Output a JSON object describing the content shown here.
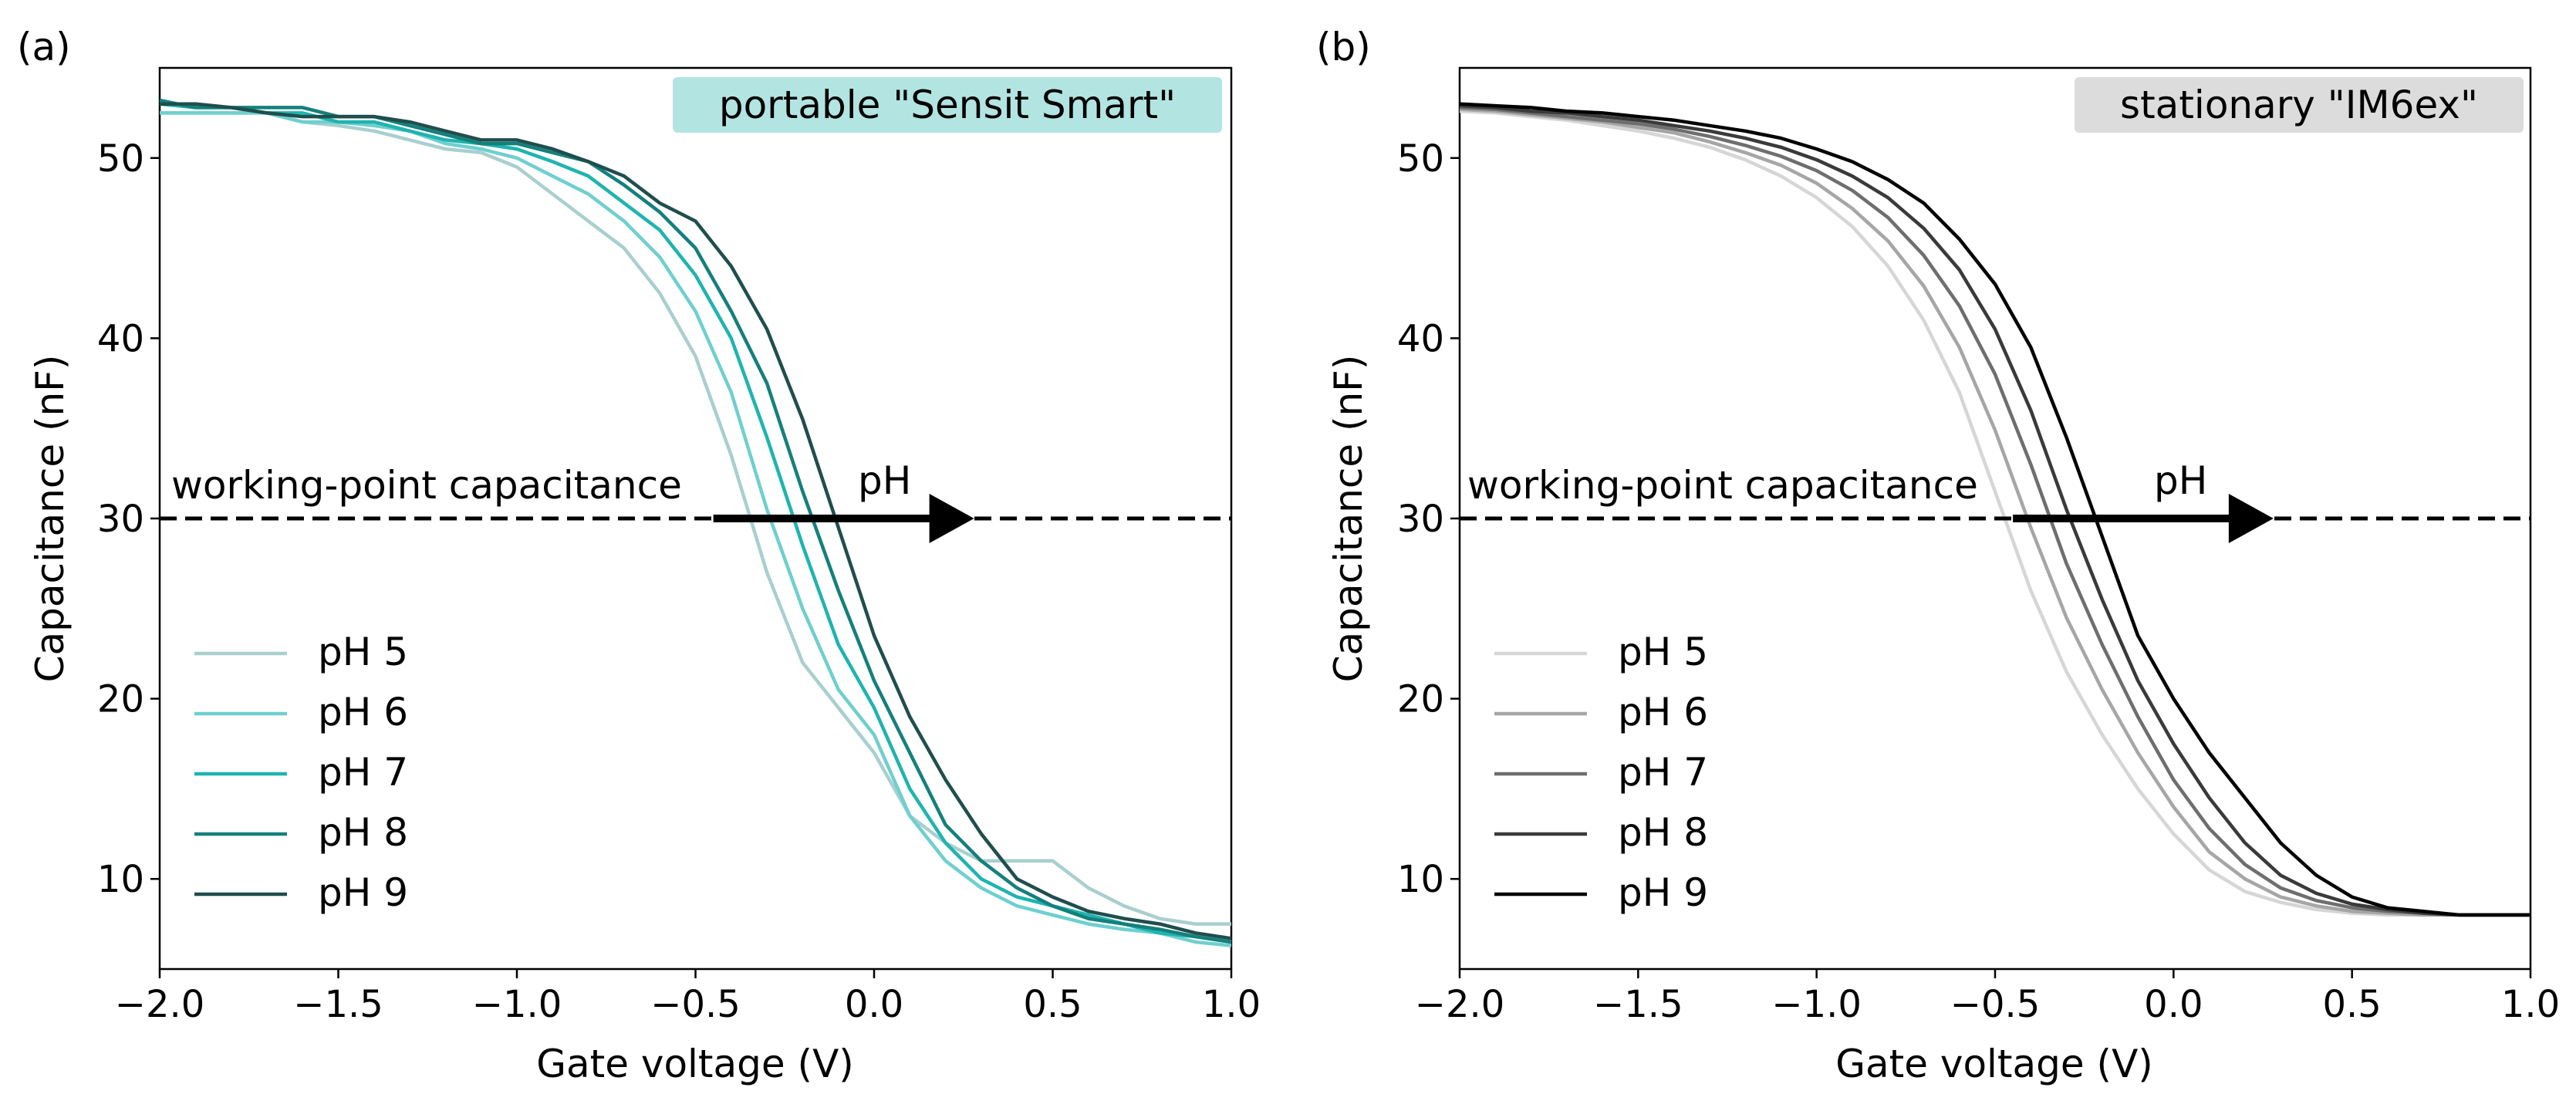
{
  "chart_data": [
    {
      "type": "line",
      "panel_label": "(a)",
      "title": "portable \"Sensit Smart\"",
      "title_bg": "#b2e4e2",
      "xlabel": "Gate voltage (V)",
      "ylabel": "Capacitance (nF)",
      "xlim": [
        -2.0,
        1.0
      ],
      "ylim": [
        5,
        55
      ],
      "xticks": [
        -2.0,
        -1.5,
        -1.0,
        -0.5,
        0.0,
        0.5,
        1.0
      ],
      "xtick_labels": [
        "−2.0",
        "−1.5",
        "−1.0",
        "−0.5",
        "0.0",
        "0.5",
        "1.0"
      ],
      "yticks": [
        10,
        20,
        30,
        40,
        50
      ],
      "ytick_labels": [
        "10",
        "20",
        "30",
        "40",
        "50"
      ],
      "legend_position": "lower-left",
      "reference_line": {
        "y": 30,
        "label": "working-point capacitance"
      },
      "arrow": {
        "x_start": -0.45,
        "x_end": 0.28,
        "y": 30,
        "label": "pH"
      },
      "x": [
        -2.0,
        -1.9,
        -1.8,
        -1.7,
        -1.6,
        -1.5,
        -1.4,
        -1.3,
        -1.2,
        -1.1,
        -1.0,
        -0.9,
        -0.8,
        -0.7,
        -0.6,
        -0.5,
        -0.4,
        -0.3,
        -0.2,
        -0.1,
        0.0,
        0.1,
        0.2,
        0.3,
        0.4,
        0.5,
        0.6,
        0.7,
        0.8,
        0.9,
        1.0
      ],
      "series": [
        {
          "name": "pH 5",
          "color": "#a9cfcf",
          "values": [
            52.5,
            52.5,
            52.5,
            52.5,
            52.0,
            51.8,
            51.5,
            51.0,
            50.5,
            50.3,
            49.5,
            48.0,
            46.5,
            45.0,
            42.5,
            39.0,
            33.5,
            27.0,
            22.0,
            19.5,
            17.0,
            13.5,
            12.0,
            11.0,
            11.0,
            11.0,
            9.5,
            8.5,
            7.8,
            7.5,
            7.5
          ]
        },
        {
          "name": "pH 6",
          "color": "#6fcfcf",
          "values": [
            52.5,
            52.5,
            52.5,
            52.5,
            52.0,
            52.0,
            51.8,
            51.5,
            50.8,
            50.5,
            50.0,
            49.0,
            48.0,
            46.5,
            44.5,
            41.5,
            37.0,
            30.5,
            25.0,
            20.5,
            18.0,
            13.5,
            11.0,
            9.5,
            8.5,
            8.0,
            7.5,
            7.2,
            7.0,
            6.5,
            6.3
          ]
        },
        {
          "name": "pH 7",
          "color": "#1fb4b0",
          "values": [
            53.0,
            52.8,
            52.8,
            52.5,
            52.5,
            52.0,
            52.0,
            51.5,
            51.0,
            50.8,
            50.5,
            49.8,
            49.0,
            47.5,
            46.0,
            43.5,
            40.0,
            34.5,
            28.5,
            23.0,
            19.5,
            15.0,
            12.0,
            10.0,
            9.0,
            8.5,
            8.0,
            7.5,
            7.0,
            6.8,
            6.5
          ]
        },
        {
          "name": "pH 8",
          "color": "#14807c",
          "values": [
            53.2,
            52.8,
            52.8,
            52.8,
            52.8,
            52.3,
            52.3,
            51.8,
            51.3,
            50.8,
            50.8,
            50.3,
            49.8,
            48.5,
            47.0,
            45.0,
            41.5,
            37.5,
            31.5,
            26.0,
            21.0,
            17.0,
            13.0,
            11.0,
            9.5,
            8.5,
            7.8,
            7.5,
            7.2,
            6.8,
            6.5
          ]
        },
        {
          "name": "pH 9",
          "color": "#1f4e4d",
          "values": [
            53.0,
            53.0,
            52.8,
            52.5,
            52.3,
            52.3,
            52.3,
            52.0,
            51.5,
            51.0,
            51.0,
            50.5,
            49.8,
            49.0,
            47.5,
            46.5,
            44.0,
            40.5,
            35.5,
            29.5,
            23.5,
            19.0,
            15.5,
            12.5,
            10.0,
            9.0,
            8.2,
            7.8,
            7.5,
            7.0,
            6.7
          ]
        }
      ]
    },
    {
      "type": "line",
      "panel_label": "(b)",
      "title": "stationary \"IM6ex\"",
      "title_bg": "#dcdcdc",
      "xlabel": "Gate voltage (V)",
      "ylabel": "Capacitance (nF)",
      "xlim": [
        -2.0,
        1.0
      ],
      "ylim": [
        5,
        55
      ],
      "xticks": [
        -2.0,
        -1.5,
        -1.0,
        -0.5,
        0.0,
        0.5,
        1.0
      ],
      "xtick_labels": [
        "−2.0",
        "−1.5",
        "−1.0",
        "−0.5",
        "0.0",
        "0.5",
        "1.0"
      ],
      "yticks": [
        10,
        20,
        30,
        40,
        50
      ],
      "ytick_labels": [
        "10",
        "20",
        "30",
        "40",
        "50"
      ],
      "legend_position": "lower-left",
      "reference_line": {
        "y": 30,
        "label": "working-point capacitance"
      },
      "arrow": {
        "x_start": -0.45,
        "x_end": 0.28,
        "y": 30,
        "label": "pH"
      },
      "x": [
        -2.0,
        -1.9,
        -1.8,
        -1.7,
        -1.6,
        -1.5,
        -1.4,
        -1.3,
        -1.2,
        -1.1,
        -1.0,
        -0.9,
        -0.8,
        -0.7,
        -0.6,
        -0.5,
        -0.4,
        -0.3,
        -0.2,
        -0.1,
        0.0,
        0.1,
        0.2,
        0.3,
        0.4,
        0.5,
        0.6,
        0.7,
        0.8,
        0.9,
        1.0
      ],
      "series": [
        {
          "name": "pH 5",
          "color": "#d6d6d6",
          "values": [
            52.6,
            52.5,
            52.3,
            52.1,
            51.8,
            51.5,
            51.1,
            50.6,
            49.9,
            49.0,
            47.8,
            46.2,
            44.0,
            41.0,
            37.0,
            31.5,
            26.0,
            21.5,
            18.0,
            15.0,
            12.5,
            10.5,
            9.3,
            8.7,
            8.3,
            8.1,
            8.0,
            8.0,
            8.0,
            8.0,
            8.0
          ]
        },
        {
          "name": "pH 6",
          "color": "#a6a6a6",
          "values": [
            52.7,
            52.6,
            52.4,
            52.2,
            52.0,
            51.7,
            51.4,
            50.9,
            50.3,
            49.6,
            48.6,
            47.2,
            45.4,
            42.9,
            39.5,
            34.9,
            29.5,
            24.5,
            20.5,
            17.0,
            14.0,
            11.5,
            10.0,
            9.0,
            8.5,
            8.2,
            8.1,
            8.0,
            8.0,
            8.0,
            8.0
          ]
        },
        {
          "name": "pH 7",
          "color": "#6e6e6e",
          "values": [
            52.8,
            52.7,
            52.5,
            52.3,
            52.1,
            51.9,
            51.6,
            51.2,
            50.7,
            50.1,
            49.3,
            48.2,
            46.7,
            44.6,
            41.8,
            38.0,
            33.0,
            27.5,
            23.0,
            19.0,
            15.5,
            12.8,
            10.8,
            9.5,
            8.8,
            8.4,
            8.2,
            8.1,
            8.0,
            8.0,
            8.0
          ]
        },
        {
          "name": "pH 8",
          "color": "#3a3a3a",
          "values": [
            52.9,
            52.8,
            52.6,
            52.5,
            52.3,
            52.1,
            51.8,
            51.5,
            51.1,
            50.6,
            49.9,
            49.0,
            47.8,
            46.1,
            43.8,
            40.5,
            36.0,
            30.5,
            25.5,
            21.0,
            17.5,
            14.5,
            12.0,
            10.2,
            9.2,
            8.6,
            8.3,
            8.1,
            8.0,
            8.0,
            8.0
          ]
        },
        {
          "name": "pH 9",
          "color": "#000000",
          "values": [
            53.0,
            52.9,
            52.8,
            52.6,
            52.5,
            52.3,
            52.1,
            51.8,
            51.5,
            51.1,
            50.5,
            49.8,
            48.8,
            47.5,
            45.5,
            43.0,
            39.5,
            34.5,
            29.0,
            23.5,
            20.0,
            17.0,
            14.5,
            12.0,
            10.2,
            9.0,
            8.4,
            8.2,
            8.0,
            8.0,
            8.0
          ]
        }
      ]
    }
  ]
}
